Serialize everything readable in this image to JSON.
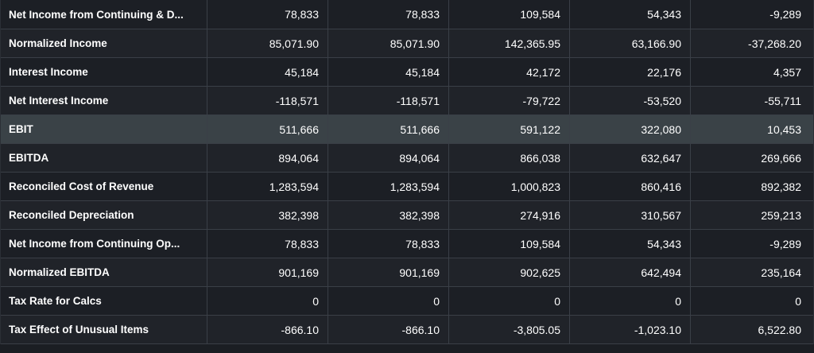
{
  "table": {
    "rows": [
      {
        "label": "Net Income from Continuing & D...",
        "values": [
          "78,833",
          "78,833",
          "109,584",
          "54,343",
          "-9,289"
        ]
      },
      {
        "label": "Normalized Income",
        "values": [
          "85,071.90",
          "85,071.90",
          "142,365.95",
          "63,166.90",
          "-37,268.20"
        ]
      },
      {
        "label": "Interest Income",
        "values": [
          "45,184",
          "45,184",
          "42,172",
          "22,176",
          "4,357"
        ]
      },
      {
        "label": "Net Interest Income",
        "values": [
          "-118,571",
          "-118,571",
          "-79,722",
          "-53,520",
          "-55,711"
        ]
      },
      {
        "label": "EBIT",
        "values": [
          "511,666",
          "511,666",
          "591,122",
          "322,080",
          "10,453"
        ]
      },
      {
        "label": "EBITDA",
        "values": [
          "894,064",
          "894,064",
          "866,038",
          "632,647",
          "269,666"
        ]
      },
      {
        "label": "Reconciled Cost of Revenue",
        "values": [
          "1,283,594",
          "1,283,594",
          "1,000,823",
          "860,416",
          "892,382"
        ]
      },
      {
        "label": "Reconciled Depreciation",
        "values": [
          "382,398",
          "382,398",
          "274,916",
          "310,567",
          "259,213"
        ]
      },
      {
        "label": "Net Income from Continuing Op...",
        "values": [
          "78,833",
          "78,833",
          "109,584",
          "54,343",
          "-9,289"
        ]
      },
      {
        "label": "Normalized EBITDA",
        "values": [
          "901,169",
          "901,169",
          "902,625",
          "642,494",
          "235,164"
        ]
      },
      {
        "label": "Tax Rate for Calcs",
        "values": [
          "0",
          "0",
          "0",
          "0",
          "0"
        ]
      },
      {
        "label": "Tax Effect of Unusual Items",
        "values": [
          "-866.10",
          "-866.10",
          "-3,805.05",
          "-1,023.10",
          "6,522.80"
        ]
      }
    ]
  },
  "colors": {
    "background": "#1b1e23",
    "row_dark": "#1c1f25",
    "row_light": "#202329",
    "row_highlight": "#3a4247",
    "grid_line": "#3a3f47",
    "text": "#ffffff"
  }
}
